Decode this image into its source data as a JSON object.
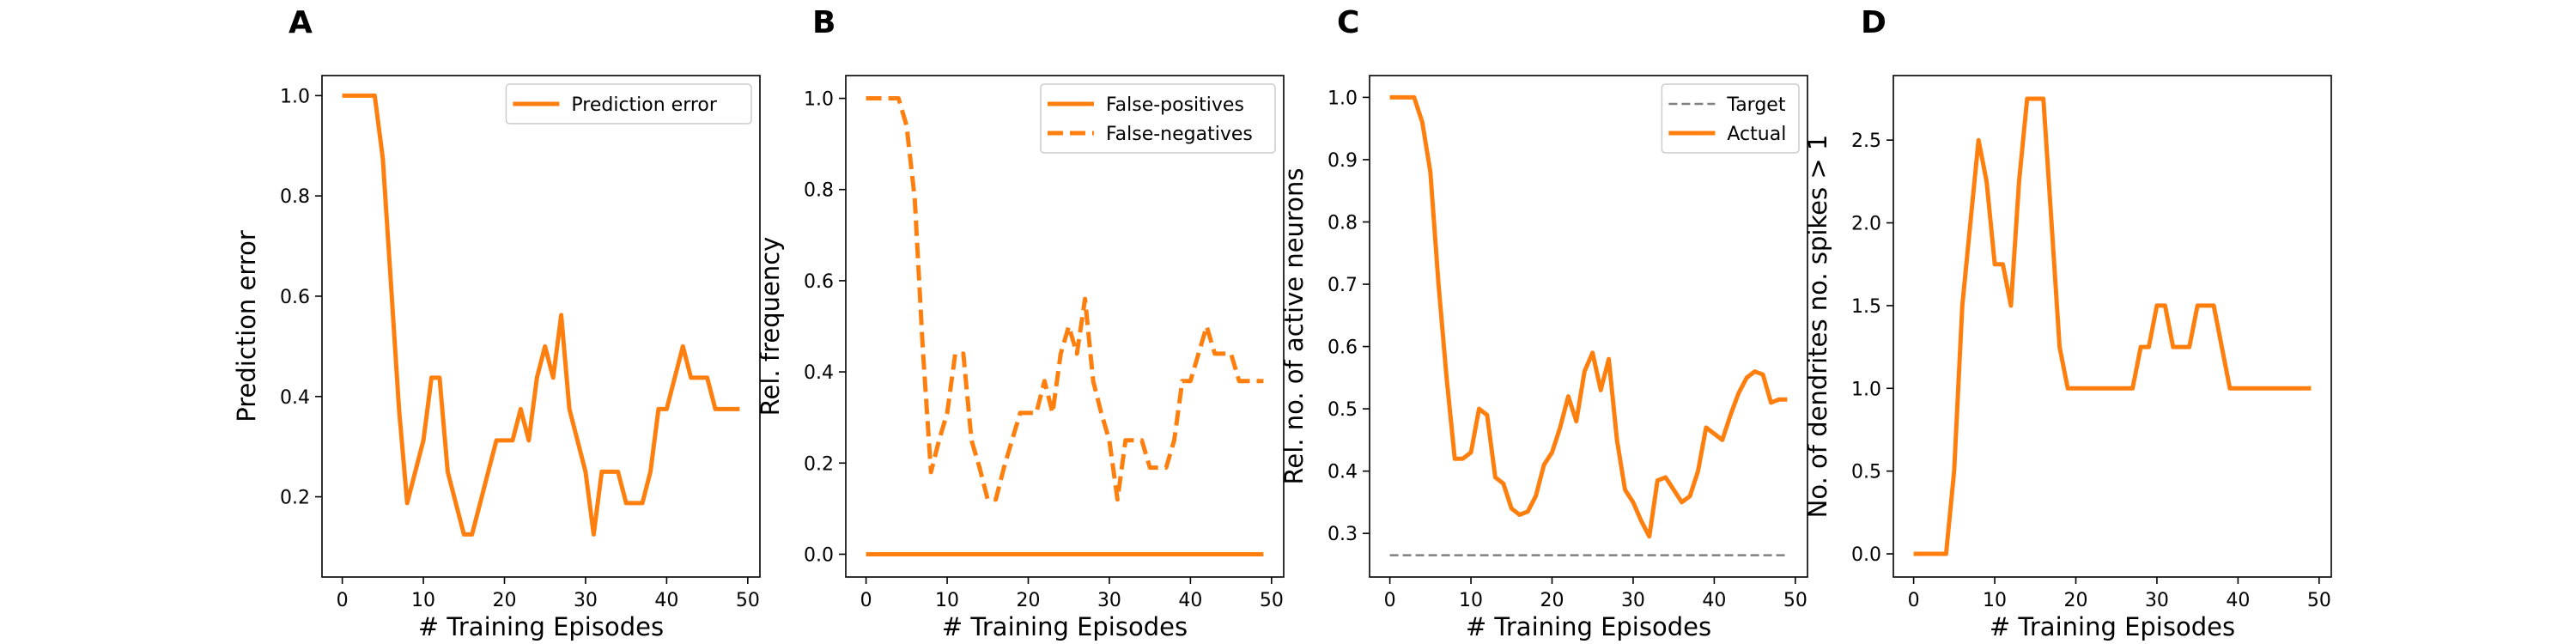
{
  "colors": {
    "accent": "#ff7f0e",
    "target": "#808080",
    "frame": "#000000",
    "background": "#ffffff"
  },
  "chart_data": [
    {
      "panel": "A",
      "type": "line",
      "xlabel": "# Training Episodes",
      "ylabel": "Prediction error",
      "xlim": [
        -2.5,
        51.5
      ],
      "ylim": [
        0.04,
        1.04
      ],
      "xticks": [
        0,
        10,
        20,
        30,
        40,
        50
      ],
      "yticks": [
        0.2,
        0.4,
        0.6,
        0.8,
        1.0
      ],
      "ytick_format": 1,
      "legend": "top-right",
      "series": [
        {
          "name": "Prediction error",
          "style": "solid",
          "color": "#ff7f0e",
          "x": [
            0,
            1,
            2,
            3,
            4,
            5,
            6,
            7,
            8,
            9,
            10,
            11,
            12,
            13,
            14,
            15,
            16,
            17,
            18,
            19,
            20,
            21,
            22,
            23,
            24,
            25,
            26,
            27,
            28,
            29,
            30,
            31,
            32,
            33,
            34,
            35,
            36,
            37,
            38,
            39,
            40,
            41,
            42,
            43,
            44,
            45,
            46,
            47,
            48,
            49
          ],
          "y": [
            1.0,
            1.0,
            1.0,
            1.0,
            1.0,
            0.875,
            0.625,
            0.375,
            0.1875,
            0.25,
            0.3125,
            0.4375,
            0.4375,
            0.25,
            0.1875,
            0.125,
            0.125,
            0.1875,
            0.25,
            0.3125,
            0.3125,
            0.3125,
            0.375,
            0.3125,
            0.4375,
            0.5,
            0.4375,
            0.5625,
            0.375,
            0.3125,
            0.25,
            0.125,
            0.25,
            0.25,
            0.25,
            0.1875,
            0.1875,
            0.1875,
            0.25,
            0.375,
            0.375,
            0.4375,
            0.5,
            0.4375,
            0.4375,
            0.4375,
            0.375,
            0.375,
            0.375,
            0.375
          ]
        }
      ]
    },
    {
      "panel": "B",
      "type": "line",
      "xlabel": "# Training Episodes",
      "ylabel": "Rel. frequency",
      "xlim": [
        -2.5,
        51.5
      ],
      "ylim": [
        -0.05,
        1.05
      ],
      "xticks": [
        0,
        10,
        20,
        30,
        40,
        50
      ],
      "yticks": [
        0.0,
        0.2,
        0.4,
        0.6,
        0.8,
        1.0
      ],
      "ytick_format": 1,
      "legend": "top-right",
      "series": [
        {
          "name": "False-positives",
          "style": "solid",
          "color": "#ff7f0e",
          "x": [
            0,
            49
          ],
          "y": [
            0.0,
            0.0
          ]
        },
        {
          "name": "False-negatives",
          "style": "dashed",
          "color": "#ff7f0e",
          "x": [
            0,
            1,
            2,
            3,
            4,
            5,
            6,
            7,
            8,
            9,
            10,
            11,
            12,
            13,
            14,
            15,
            16,
            17,
            18,
            19,
            20,
            21,
            22,
            23,
            24,
            25,
            26,
            27,
            28,
            29,
            30,
            31,
            32,
            33,
            34,
            35,
            36,
            37,
            38,
            39,
            40,
            41,
            42,
            43,
            44,
            45,
            46,
            47,
            48,
            49
          ],
          "y": [
            1.0,
            1.0,
            1.0,
            1.0,
            1.0,
            0.94,
            0.78,
            0.45,
            0.18,
            0.25,
            0.31,
            0.44,
            0.44,
            0.25,
            0.19,
            0.12,
            0.12,
            0.19,
            0.25,
            0.31,
            0.31,
            0.31,
            0.38,
            0.31,
            0.44,
            0.5,
            0.44,
            0.56,
            0.38,
            0.31,
            0.25,
            0.12,
            0.25,
            0.25,
            0.25,
            0.19,
            0.19,
            0.19,
            0.25,
            0.38,
            0.38,
            0.44,
            0.5,
            0.44,
            0.44,
            0.44,
            0.38,
            0.38,
            0.38,
            0.38
          ]
        }
      ]
    },
    {
      "panel": "C",
      "type": "line",
      "xlabel": "# Training Episodes",
      "ylabel": "Rel. no. of active neurons",
      "xlim": [
        -2.5,
        51.5
      ],
      "ylim": [
        0.23,
        1.035
      ],
      "xticks": [
        0,
        10,
        20,
        30,
        40,
        50
      ],
      "yticks": [
        0.3,
        0.4,
        0.5,
        0.6,
        0.7,
        0.8,
        0.9,
        1.0
      ],
      "ytick_format": 1,
      "legend": "top-right",
      "series": [
        {
          "name": "Target",
          "style": "dashed-thin",
          "color": "#808080",
          "x": [
            0,
            49
          ],
          "y": [
            0.265,
            0.265
          ]
        },
        {
          "name": "Actual",
          "style": "solid",
          "color": "#ff7f0e",
          "x": [
            0,
            1,
            2,
            3,
            4,
            5,
            6,
            7,
            8,
            9,
            10,
            11,
            12,
            13,
            14,
            15,
            16,
            17,
            18,
            19,
            20,
            21,
            22,
            23,
            24,
            25,
            26,
            27,
            28,
            29,
            30,
            31,
            32,
            33,
            34,
            35,
            36,
            37,
            38,
            39,
            40,
            41,
            42,
            43,
            44,
            45,
            46,
            47,
            48,
            49
          ],
          "y": [
            1.0,
            1.0,
            1.0,
            1.0,
            0.96,
            0.88,
            0.7,
            0.55,
            0.42,
            0.42,
            0.43,
            0.5,
            0.49,
            0.39,
            0.38,
            0.34,
            0.33,
            0.335,
            0.36,
            0.41,
            0.43,
            0.47,
            0.52,
            0.48,
            0.56,
            0.59,
            0.53,
            0.58,
            0.45,
            0.37,
            0.35,
            0.32,
            0.295,
            0.385,
            0.39,
            0.37,
            0.35,
            0.36,
            0.4,
            0.47,
            0.46,
            0.45,
            0.49,
            0.525,
            0.55,
            0.56,
            0.555,
            0.51,
            0.515,
            0.515
          ]
        }
      ]
    },
    {
      "panel": "D",
      "type": "line",
      "xlabel": "# Training Episodes",
      "ylabel": "No. of dendrites no. spikes > 1",
      "xlim": [
        -2.5,
        51.5
      ],
      "ylim": [
        -0.14,
        2.89
      ],
      "xticks": [
        0,
        10,
        20,
        30,
        40,
        50
      ],
      "yticks": [
        0.0,
        0.5,
        1.0,
        1.5,
        2.0,
        2.5
      ],
      "ytick_format": 1,
      "legend": "none",
      "series": [
        {
          "style": "solid",
          "color": "#ff7f0e",
          "x": [
            0,
            1,
            2,
            3,
            4,
            5,
            6,
            7,
            8,
            9,
            10,
            11,
            12,
            13,
            14,
            15,
            16,
            17,
            18,
            19,
            20,
            21,
            22,
            23,
            24,
            25,
            26,
            27,
            28,
            29,
            30,
            31,
            32,
            33,
            34,
            35,
            36,
            37,
            38,
            39,
            40,
            41,
            42,
            43,
            44,
            45,
            46,
            47,
            48,
            49
          ],
          "y": [
            0,
            0,
            0,
            0,
            0,
            0.5,
            1.5,
            2.0,
            2.5,
            2.25,
            1.75,
            1.75,
            1.5,
            2.25,
            2.75,
            2.75,
            2.75,
            2.0,
            1.25,
            1.0,
            1.0,
            1.0,
            1.0,
            1.0,
            1.0,
            1.0,
            1.0,
            1.0,
            1.25,
            1.25,
            1.5,
            1.5,
            1.25,
            1.25,
            1.25,
            1.5,
            1.5,
            1.5,
            1.25,
            1.0,
            1.0,
            1.0,
            1.0,
            1.0,
            1.0,
            1.0,
            1.0,
            1.0,
            1.0,
            1.0
          ]
        }
      ]
    }
  ]
}
